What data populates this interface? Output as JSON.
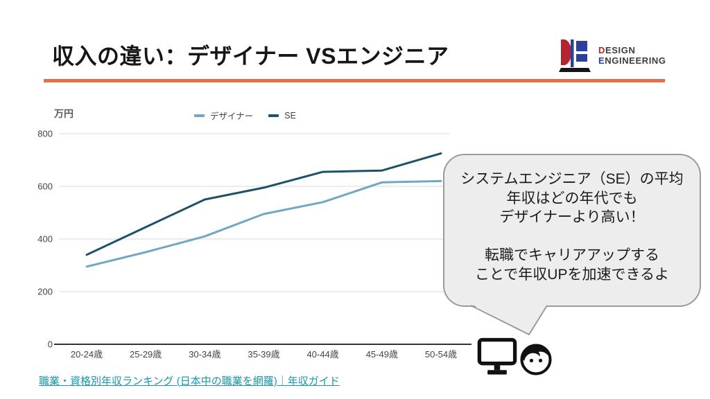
{
  "header": {
    "title": "収入の違い：デザイナー VSエンジニア"
  },
  "logo": {
    "design_initial": "D",
    "design_rest": "ESIGN",
    "eng_initial": "E",
    "eng_rest": "NGINEERING",
    "red": "#B5232E",
    "blue": "#2B419B"
  },
  "chart_data": {
    "type": "line",
    "unit_label": "万円",
    "categories": [
      "20-24歳",
      "25-29歳",
      "30-34歳",
      "35-39歳",
      "40-44歳",
      "45-49歳",
      "50-54歳"
    ],
    "series": [
      {
        "name": "デザイナー",
        "color": "#72A6C3",
        "values": [
          295,
          350,
          410,
          495,
          540,
          615,
          620
        ]
      },
      {
        "name": "SE",
        "color": "#1C5167",
        "values": [
          340,
          445,
          550,
          595,
          655,
          660,
          725
        ]
      }
    ],
    "ylabel": "万円",
    "xlabel": "",
    "yticks": [
      0,
      200,
      400,
      600,
      800
    ],
    "ylim": [
      0,
      800
    ],
    "grid": true,
    "legend_position": "top"
  },
  "bubble": {
    "lines": [
      "システムエンジニア（SE）の平均",
      "年収はどの年代でも",
      "デザイナーより高い！",
      "",
      "転職でキャリアアップする",
      "ことで年収UPを加速できるよ"
    ]
  },
  "footer": {
    "link_text": "職業・資格別年収ランキング (日本中の職業を網羅)｜年収ガイド"
  },
  "colors": {
    "accent_rule": "#E0714B",
    "link": "#1799A8",
    "bubble_fill": "#EDEDED",
    "bubble_border": "#9A9A9A"
  }
}
